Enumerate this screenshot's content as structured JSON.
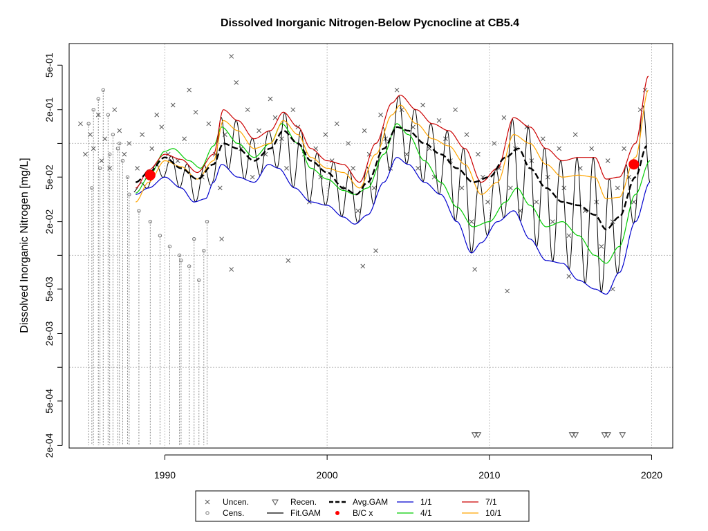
{
  "chart_data": {
    "type": "scatter",
    "title": "Dissolved Inorganic Nitrogen-Below Pycnocline at CB5.4",
    "xlabel": "",
    "ylabel": "Dissolved Inorganic Nitrogen [mg/L]",
    "y_scale": "log",
    "xlim": [
      1984.1,
      2021.3
    ],
    "ylim": [
      0.00019,
      0.78
    ],
    "x_ticks": [
      1990,
      2000,
      2010,
      2020
    ],
    "x_tick_labels": [
      "1990",
      "2000",
      "2010",
      "2020"
    ],
    "y_ticks": [
      0.0002,
      0.0005,
      0.002,
      0.005,
      0.02,
      0.05,
      0.2,
      0.5
    ],
    "y_tick_labels": [
      "2e-04",
      "5e-04",
      "2e-03",
      "5e-03",
      "2e-02",
      "5e-02",
      "2e-01",
      "5e-01"
    ],
    "grid": true,
    "grid_x": [
      1990,
      2000,
      2010,
      2020
    ],
    "grid_y": [
      0.001,
      0.01,
      0.1
    ],
    "legend_position": "bottom-center",
    "legend": [
      {
        "key": "uncen",
        "label": "Uncen.",
        "symbol": "cross",
        "color": "#555555"
      },
      {
        "key": "cens",
        "label": "Cens.",
        "symbol": "circle",
        "color": "#777777"
      },
      {
        "key": "recen",
        "label": "Recen.",
        "symbol": "triangle-down",
        "color": "#555555"
      },
      {
        "key": "fit",
        "label": "Fit.GAM",
        "symbol": "line",
        "color": "#000000"
      },
      {
        "key": "avg",
        "label": "Avg.GAM",
        "symbol": "dashed-line",
        "color": "#000000"
      },
      {
        "key": "bc",
        "label": "B/C x",
        "symbol": "dot",
        "color": "#ff0000"
      },
      {
        "key": "s1",
        "label": "1/1",
        "symbol": "line",
        "color": "#0000cd"
      },
      {
        "key": "s4",
        "label": "4/1",
        "symbol": "line",
        "color": "#00cc00"
      },
      {
        "key": "s7",
        "label": "7/1",
        "symbol": "line",
        "color": "#cc0000"
      },
      {
        "key": "s10",
        "label": "10/1",
        "symbol": "line",
        "color": "#ffa500"
      }
    ],
    "colors": {
      "s1": "#0000cd",
      "s4": "#00cc00",
      "s7": "#cc0000",
      "s10": "#ffa500",
      "fit": "#000000",
      "avg": "#000000",
      "bc": "#ff0000",
      "points": "#555555",
      "censored": "#777777",
      "grid": "#c0c0c0"
    },
    "series": [
      {
        "key": "avg",
        "name": "Avg.GAM",
        "x": [
          1988.2,
          1989.0,
          1990.0,
          1991.0,
          1992.0,
          1993.0,
          1993.6,
          1994.5,
          1995.5,
          1996.5,
          1997.3,
          1998.2,
          1999.0,
          2000.0,
          2001.0,
          2001.8,
          2002.5,
          2003.5,
          2004.3,
          2005.0,
          2006.0,
          2007.0,
          2008.0,
          2009.0,
          2010.0,
          2011.0,
          2011.8,
          2012.5,
          2013.5,
          2014.5,
          2015.5,
          2016.5,
          2017.2,
          2018.0,
          2019.0,
          2019.7
        ],
        "y": [
          0.045,
          0.055,
          0.075,
          0.06,
          0.048,
          0.065,
          0.1,
          0.09,
          0.07,
          0.09,
          0.13,
          0.1,
          0.07,
          0.055,
          0.04,
          0.035,
          0.045,
          0.09,
          0.14,
          0.13,
          0.1,
          0.08,
          0.06,
          0.045,
          0.05,
          0.075,
          0.09,
          0.06,
          0.04,
          0.03,
          0.028,
          0.023,
          0.017,
          0.022,
          0.05,
          0.095
        ]
      },
      {
        "key": "s1",
        "name": "1/1",
        "x": [
          1988.2,
          1989.0,
          1990.0,
          1991.0,
          1991.8,
          1992.5,
          1993.0,
          1993.5,
          1994.5,
          1995.5,
          1996.4,
          1997.0,
          1998.0,
          1999.0,
          2000.0,
          2001.0,
          2001.7,
          2002.5,
          2003.5,
          2004.3,
          2005.0,
          2006.0,
          2007.0,
          2008.0,
          2008.9,
          2009.5,
          2010.5,
          2011.5,
          2012.5,
          2013.5,
          2014.5,
          2015.5,
          2016.5,
          2017.2,
          2018.0,
          2019.0,
          2019.9
        ],
        "y": [
          0.035,
          0.04,
          0.05,
          0.04,
          0.03,
          0.032,
          0.045,
          0.065,
          0.05,
          0.045,
          0.065,
          0.06,
          0.04,
          0.03,
          0.028,
          0.022,
          0.019,
          0.023,
          0.045,
          0.075,
          0.065,
          0.045,
          0.035,
          0.02,
          0.0105,
          0.013,
          0.02,
          0.025,
          0.014,
          0.009,
          0.0085,
          0.006,
          0.005,
          0.0045,
          0.007,
          0.02,
          0.045
        ]
      },
      {
        "key": "s4",
        "name": "4/1",
        "x": [
          1988.2,
          1989.0,
          1990.0,
          1990.5,
          1991.5,
          1992.2,
          1993.0,
          1993.5,
          1994.5,
          1995.5,
          1996.5,
          1997.2,
          1998.2,
          1999.0,
          2000.0,
          2001.0,
          2001.7,
          2002.5,
          2003.5,
          2004.3,
          2005.0,
          2006.0,
          2007.0,
          2008.0,
          2009.0,
          2010.0,
          2011.0,
          2011.7,
          2012.5,
          2013.5,
          2014.5,
          2015.5,
          2016.5,
          2017.2,
          2018.0,
          2019.0,
          2019.9
        ],
        "y": [
          0.036,
          0.05,
          0.085,
          0.09,
          0.07,
          0.06,
          0.095,
          0.14,
          0.1,
          0.075,
          0.1,
          0.15,
          0.1,
          0.06,
          0.048,
          0.038,
          0.035,
          0.04,
          0.08,
          0.15,
          0.12,
          0.07,
          0.045,
          0.027,
          0.018,
          0.02,
          0.03,
          0.04,
          0.028,
          0.018,
          0.02,
          0.015,
          0.01,
          0.0085,
          0.012,
          0.035,
          0.07
        ]
      },
      {
        "key": "s7",
        "name": "7/1",
        "x": [
          1988.2,
          1989.0,
          1990.0,
          1991.0,
          1992.0,
          1993.0,
          1993.6,
          1994.5,
          1995.5,
          1996.5,
          1997.3,
          1998.2,
          1999.0,
          2000.0,
          2001.0,
          2002.0,
          2003.0,
          2004.0,
          2004.5,
          2005.5,
          2006.5,
          2007.5,
          2008.5,
          2009.5,
          2010.5,
          2011.5,
          2012.5,
          2013.5,
          2014.5,
          2015.5,
          2016.5,
          2017.2,
          2018.0,
          2019.0,
          2019.8
        ],
        "y": [
          0.04,
          0.058,
          0.08,
          0.072,
          0.055,
          0.08,
          0.2,
          0.16,
          0.11,
          0.13,
          0.19,
          0.14,
          0.09,
          0.07,
          0.065,
          0.045,
          0.1,
          0.23,
          0.27,
          0.2,
          0.15,
          0.13,
          0.09,
          0.045,
          0.06,
          0.17,
          0.14,
          0.09,
          0.07,
          0.075,
          0.075,
          0.048,
          0.05,
          0.1,
          0.4
        ]
      },
      {
        "key": "s10",
        "name": "10/1",
        "x": [
          1988.2,
          1989.0,
          1990.0,
          1991.0,
          1992.0,
          1993.0,
          1993.6,
          1994.5,
          1995.5,
          1996.5,
          1997.3,
          1998.2,
          1999.0,
          2000.0,
          2001.0,
          2002.0,
          2003.0,
          2004.0,
          2004.5,
          2005.5,
          2006.5,
          2007.5,
          2008.5,
          2009.5,
          2010.5,
          2011.5,
          2012.5,
          2013.5,
          2014.5,
          2015.5,
          2016.5,
          2017.2,
          2018.0,
          2019.0,
          2019.8
        ],
        "y": [
          0.03,
          0.045,
          0.07,
          0.062,
          0.048,
          0.07,
          0.16,
          0.13,
          0.09,
          0.1,
          0.16,
          0.12,
          0.075,
          0.06,
          0.055,
          0.04,
          0.08,
          0.18,
          0.22,
          0.15,
          0.11,
          0.095,
          0.065,
          0.035,
          0.045,
          0.12,
          0.1,
          0.065,
          0.05,
          0.052,
          0.05,
          0.032,
          0.033,
          0.075,
          0.3
        ]
      }
    ],
    "fit_gam": {
      "name": "Fit.GAM",
      "period_start": 1988.1,
      "period_end": 1988.9,
      "peak_phase": 0.4,
      "high_key": "s7",
      "low_key": "s1",
      "x_start": 1988.1,
      "x_end": 2019.9
    },
    "uncensored_points": {
      "x": [
        1984.8,
        1985.1,
        1985.4,
        1985.6,
        1985.9,
        1986.1,
        1986.3,
        1986.6,
        1986.9,
        1987.2,
        1987.5,
        1987.8,
        1988.3,
        1988.6,
        1988.9,
        1989.2,
        1989.5,
        1989.8,
        1990.2,
        1990.5,
        1990.8,
        1991.2,
        1991.5,
        1991.9,
        1992.3,
        1992.7,
        1993.1,
        1993.4,
        1993.7,
        1994.1,
        1994.4,
        1994.7,
        1995.1,
        1995.4,
        1995.8,
        1996.2,
        1996.5,
        1996.8,
        1997.2,
        1997.5,
        1997.9,
        1998.2,
        1998.6,
        1998.9,
        1999.3,
        1999.6,
        1999.9,
        2000.3,
        2000.6,
        2000.9,
        2001.3,
        2001.6,
        2001.9,
        2002.3,
        2002.6,
        2002.9,
        2003.3,
        2003.6,
        2003.9,
        2004.3,
        2004.6,
        2004.9,
        2005.3,
        2005.6,
        2005.9,
        2006.3,
        2006.6,
        2006.9,
        2007.3,
        2007.6,
        2007.9,
        2008.3,
        2008.6,
        2008.9,
        2009.3,
        2009.6,
        2009.9,
        2010.3,
        2010.6,
        2010.9,
        2011.3,
        2011.6,
        2011.9,
        2012.3,
        2012.6,
        2012.9,
        2013.3,
        2013.6,
        2013.9,
        2014.3,
        2014.6,
        2014.9,
        2015.3,
        2015.6,
        2015.9,
        2016.3,
        2016.6,
        2016.9,
        2017.3,
        2017.6,
        2017.9,
        2018.3,
        2018.6,
        2018.9,
        2019.3,
        2019.6,
        1993.5,
        1994.1,
        2014.9,
        2017.6,
        2011.1,
        2009.1,
        1997.6,
        2003.0,
        2002.2
      ],
      "y": [
        0.15,
        0.08,
        0.12,
        0.09,
        0.18,
        0.07,
        0.11,
        0.06,
        0.2,
        0.13,
        0.08,
        0.1,
        0.06,
        0.12,
        0.05,
        0.09,
        0.18,
        0.14,
        0.08,
        0.22,
        0.07,
        0.11,
        0.3,
        0.19,
        0.05,
        0.15,
        0.08,
        0.04,
        0.12,
        0.6,
        0.35,
        0.09,
        0.2,
        0.05,
        0.13,
        0.08,
        0.25,
        0.17,
        0.11,
        0.06,
        0.2,
        0.14,
        0.08,
        0.03,
        0.09,
        0.05,
        0.12,
        0.07,
        0.15,
        0.04,
        0.1,
        0.06,
        0.025,
        0.13,
        0.08,
        0.04,
        0.18,
        0.11,
        0.06,
        0.3,
        0.2,
        0.08,
        0.14,
        0.06,
        0.22,
        0.09,
        0.05,
        0.16,
        0.11,
        0.07,
        0.2,
        0.04,
        0.12,
        0.02,
        0.08,
        0.05,
        0.03,
        0.1,
        0.06,
        0.17,
        0.04,
        0.09,
        0.025,
        0.14,
        0.07,
        0.03,
        0.11,
        0.05,
        0.02,
        0.09,
        0.04,
        0.015,
        0.12,
        0.06,
        0.025,
        0.09,
        0.03,
        0.012,
        0.07,
        0.02,
        0.04,
        0.09,
        0.05,
        0.03,
        0.2,
        0.3,
        0.014,
        0.0075,
        0.0065,
        0.005,
        0.0048,
        0.0075,
        0.009,
        0.011,
        0.008
      ]
    },
    "censored_points": {
      "x": [
        1985.3,
        1985.6,
        1985.9,
        1986.2,
        1986.5,
        1986.8,
        1987.1,
        1987.4,
        1987.7,
        1985.5,
        1986.0,
        1986.6,
        1987.2,
        1987.8,
        1988.4,
        1989.1,
        1989.7,
        1990.3,
        1990.9,
        1991.5,
        1992.1,
        1992.6,
        1991.0,
        1991.8,
        1992.4
      ],
      "y": [
        0.15,
        0.2,
        0.25,
        0.3,
        0.18,
        0.12,
        0.09,
        0.07,
        0.05,
        0.04,
        0.06,
        0.08,
        0.1,
        0.035,
        0.025,
        0.02,
        0.015,
        0.012,
        0.01,
        0.008,
        0.006,
        0.02,
        0.009,
        0.014,
        0.011
      ]
    },
    "recensored_points": {
      "x": [
        2009.1,
        2009.3,
        2015.1,
        2015.3,
        2017.1,
        2017.3,
        2018.2
      ],
      "y": [
        0.00025,
        0.00025,
        0.00025,
        0.00025,
        0.00025,
        0.00025,
        0.00025
      ]
    },
    "bc_points": {
      "x": [
        1989.1,
        2018.9
      ],
      "y": [
        0.052,
        0.065
      ]
    }
  }
}
